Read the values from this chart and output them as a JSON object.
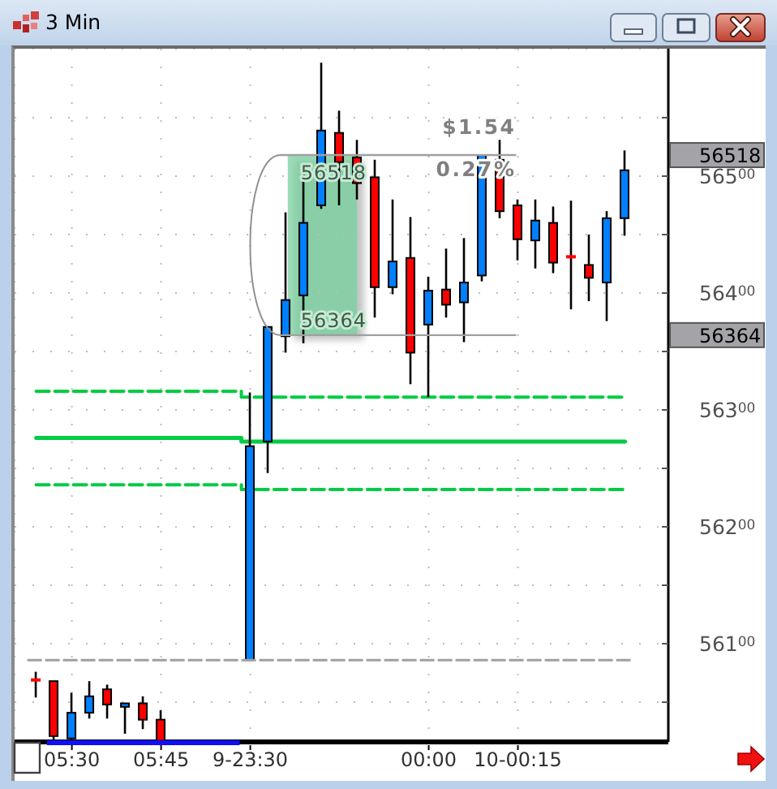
{
  "chart_data": {
    "type": "candlestick",
    "title": "3 Min",
    "categories": [
      null,
      null,
      "05:30",
      null,
      null,
      null,
      null,
      "05:45",
      null,
      null,
      null,
      null,
      "9-23:30",
      null,
      null,
      null,
      null,
      null,
      null,
      null,
      null,
      null,
      "00:00",
      null,
      null,
      null,
      null,
      "10-00:15",
      null,
      null,
      null,
      null,
      null,
      null
    ],
    "ohlc": [
      [
        56069,
        56076,
        56054,
        56068
      ],
      [
        56068,
        56068,
        56018,
        56021
      ],
      [
        56019,
        56058,
        56017,
        56041
      ],
      [
        56041,
        56068,
        56036,
        56055
      ],
      [
        56061,
        56065,
        56036,
        56048
      ],
      [
        56046,
        56049,
        56023,
        56049
      ],
      [
        56049,
        56055,
        56027,
        56035
      ],
      [
        56035,
        56043,
        56017,
        56017
      ],
      null,
      null,
      null,
      null,
      [
        56086,
        56315,
        56086,
        56269
      ],
      [
        56273,
        56371,
        56246,
        56371
      ],
      [
        56363,
        56469,
        56349,
        56394
      ],
      [
        56398,
        56511,
        56357,
        56460
      ],
      [
        56475,
        56597,
        56472,
        56539
      ],
      [
        56537,
        56556,
        56475,
        56512
      ],
      [
        56516,
        56531,
        56480,
        56494
      ],
      [
        56499,
        56514,
        56379,
        56405
      ],
      [
        56405,
        56480,
        56399,
        56427
      ],
      [
        56430,
        56465,
        56322,
        56349
      ],
      [
        56373,
        56414,
        56311,
        56402
      ],
      [
        56403,
        56438,
        56379,
        56390
      ],
      [
        56392,
        56447,
        56358,
        56409
      ],
      [
        56415,
        56518,
        56410,
        56518
      ],
      [
        56514,
        56531,
        56464,
        56470
      ],
      [
        56475,
        56480,
        56428,
        56446
      ],
      [
        56445,
        56480,
        56421,
        56462
      ],
      [
        56460,
        56474,
        56417,
        56426
      ],
      [
        56431,
        56479,
        56386,
        56430
      ],
      [
        56424,
        56450,
        56393,
        56413
      ],
      [
        56409,
        56470,
        56376,
        56464
      ],
      [
        56464,
        56522,
        56449,
        56505
      ]
    ],
    "colors": [
      "#ff0000",
      "#ff0000",
      "#0080ff",
      "#0080ff",
      "#ff0000",
      "#0080ff",
      "#ff0000",
      "#ff0000",
      null,
      null,
      null,
      null,
      "#0080ff",
      "#0080ff",
      "#0080ff",
      "#0080ff",
      "#0080ff",
      "#ff0000",
      "#ff0000",
      "#ff0000",
      "#0080ff",
      "#ff0000",
      "#0080ff",
      "#ff0000",
      "#0080ff",
      "#0080ff",
      "#ff0000",
      "#ff0000",
      "#0080ff",
      "#ff0000",
      "#ff0000",
      "#ff0000",
      "#0080ff",
      "#0080ff"
    ],
    "series": [
      {
        "type": "step",
        "color": "#00cc44",
        "line_style": "dashed",
        "values": [
          56316,
          56316,
          56316,
          56316,
          56316,
          56316,
          56316,
          56316,
          56316,
          56316,
          56316,
          56316,
          56311,
          56311,
          56311,
          56311,
          56311,
          56311,
          56311,
          56311,
          56311,
          56311,
          56311,
          56311,
          56311,
          56311,
          56311,
          56311,
          56311,
          56311,
          56311,
          56311,
          56311,
          56311
        ]
      },
      {
        "type": "step",
        "color": "#00cc44",
        "line_style": "solid",
        "values": [
          56276,
          56276,
          56276,
          56276,
          56276,
          56276,
          56276,
          56276,
          56276,
          56276,
          56276,
          56276,
          56273,
          56273,
          56273,
          56273,
          56273,
          56273,
          56273,
          56273,
          56273,
          56273,
          56273,
          56273,
          56273,
          56273,
          56273,
          56273,
          56273,
          56273,
          56273,
          56273,
          56273,
          56273
        ]
      },
      {
        "type": "step",
        "color": "#00cc44",
        "line_style": "dashed",
        "values": [
          56236,
          56236,
          56236,
          56236,
          56236,
          56236,
          56236,
          56236,
          56236,
          56236,
          56236,
          56236,
          56232,
          56232,
          56232,
          56232,
          56232,
          56232,
          56232,
          56232,
          56232,
          56232,
          56232,
          56232,
          56232,
          56232,
          56232,
          56232,
          56232,
          56232,
          56232,
          56232,
          56232,
          56232
        ]
      }
    ],
    "ylim": [
      56016,
      56609
    ],
    "yticks": [
      {
        "value": 56050,
        "label": null
      },
      56100,
      {
        "value": 56150,
        "label": null
      },
      56200,
      {
        "value": 56250,
        "label": null
      },
      56300,
      {
        "value": 56350,
        "label": null
      },
      56400,
      {
        "value": 56450,
        "label": null
      },
      56500,
      {
        "value": 56550,
        "label": null
      }
    ],
    "grid": true,
    "ref_lines": [
      {
        "axis": "y",
        "value": 56518,
        "label": "56518",
        "color": "#a0a0a0"
      },
      {
        "axis": "y",
        "value": 56364,
        "label": "56364",
        "color": "#a0a0a0"
      },
      {
        "axis": "y",
        "value": 56086,
        "color": "#a0a0a0",
        "line_style": "dashed"
      }
    ],
    "bands": [
      {
        "axis": "y",
        "from": 56364,
        "to": 56518,
        "color": "#5cc488"
      }
    ],
    "annotations": [
      "$1.54",
      "0.27%"
    ]
  }
}
